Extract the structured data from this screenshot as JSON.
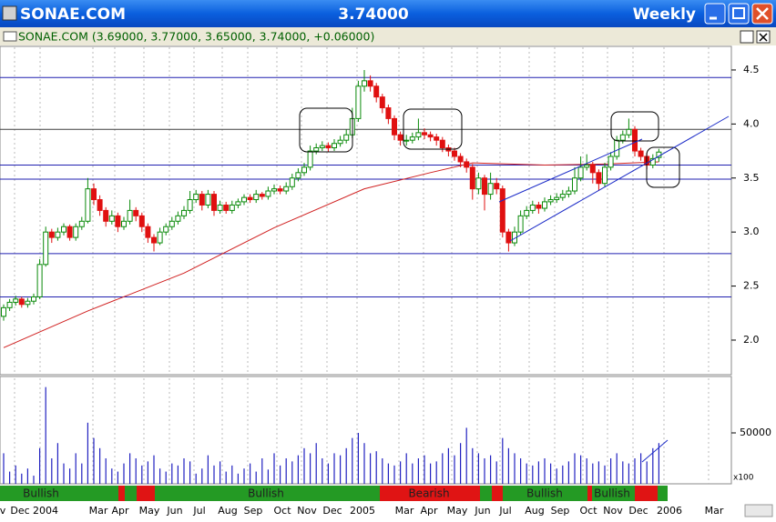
{
  "window": {
    "title": "SONAE.COM",
    "price": "3.74000",
    "period": "Weekly"
  },
  "chart_data": {
    "type": "candlestick",
    "title": "SONAE.COM (3.69000, 3.77000, 3.65000, 3.74000, +0.06000)",
    "up_color": "#0a8a0a",
    "down_color": "#e01010",
    "candles": [
      [
        2.22,
        2.33,
        2.18,
        2.3
      ],
      [
        2.3,
        2.38,
        2.27,
        2.35
      ],
      [
        2.35,
        2.41,
        2.32,
        2.38
      ],
      [
        2.38,
        2.4,
        2.3,
        2.33
      ],
      [
        2.33,
        2.39,
        2.3,
        2.36
      ],
      [
        2.36,
        2.43,
        2.33,
        2.4
      ],
      [
        2.4,
        2.75,
        2.38,
        2.7
      ],
      [
        2.7,
        3.05,
        2.68,
        3.0
      ],
      [
        3.0,
        3.03,
        2.9,
        2.95
      ],
      [
        2.95,
        3.04,
        2.92,
        3.0
      ],
      [
        3.0,
        3.08,
        2.97,
        3.05
      ],
      [
        3.05,
        3.07,
        2.92,
        2.95
      ],
      [
        2.95,
        3.08,
        2.92,
        3.05
      ],
      [
        3.05,
        3.14,
        3.02,
        3.1
      ],
      [
        3.1,
        3.5,
        3.08,
        3.4
      ],
      [
        3.4,
        3.45,
        3.25,
        3.3
      ],
      [
        3.3,
        3.34,
        3.15,
        3.2
      ],
      [
        3.2,
        3.23,
        3.05,
        3.1
      ],
      [
        3.1,
        3.2,
        3.07,
        3.15
      ],
      [
        3.15,
        3.18,
        3.0,
        3.05
      ],
      [
        3.05,
        3.14,
        3.02,
        3.1
      ],
      [
        3.1,
        3.3,
        3.07,
        3.2
      ],
      [
        3.2,
        3.23,
        3.1,
        3.15
      ],
      [
        3.15,
        3.18,
        3.0,
        3.05
      ],
      [
        3.05,
        3.08,
        2.9,
        2.95
      ],
      [
        2.95,
        2.98,
        2.82,
        2.9
      ],
      [
        2.9,
        3.04,
        2.88,
        3.0
      ],
      [
        3.0,
        3.08,
        2.97,
        3.05
      ],
      [
        3.05,
        3.14,
        3.02,
        3.1
      ],
      [
        3.1,
        3.19,
        3.07,
        3.15
      ],
      [
        3.15,
        3.24,
        3.12,
        3.2
      ],
      [
        3.2,
        3.38,
        3.17,
        3.3
      ],
      [
        3.3,
        3.39,
        3.27,
        3.35
      ],
      [
        3.35,
        3.38,
        3.2,
        3.25
      ],
      [
        3.25,
        3.39,
        3.22,
        3.35
      ],
      [
        3.35,
        3.38,
        3.15,
        3.2
      ],
      [
        3.2,
        3.29,
        3.17,
        3.25
      ],
      [
        3.25,
        3.28,
        3.17,
        3.2
      ],
      [
        3.2,
        3.29,
        3.17,
        3.25
      ],
      [
        3.25,
        3.31,
        3.22,
        3.28
      ],
      [
        3.28,
        3.35,
        3.25,
        3.32
      ],
      [
        3.32,
        3.35,
        3.27,
        3.3
      ],
      [
        3.3,
        3.39,
        3.27,
        3.35
      ],
      [
        3.35,
        3.37,
        3.3,
        3.33
      ],
      [
        3.33,
        3.42,
        3.3,
        3.38
      ],
      [
        3.38,
        3.44,
        3.35,
        3.4
      ],
      [
        3.4,
        3.43,
        3.35,
        3.38
      ],
      [
        3.38,
        3.46,
        3.35,
        3.42
      ],
      [
        3.42,
        3.54,
        3.39,
        3.5
      ],
      [
        3.5,
        3.59,
        3.47,
        3.55
      ],
      [
        3.55,
        3.64,
        3.52,
        3.6
      ],
      [
        3.6,
        3.8,
        3.57,
        3.75
      ],
      [
        3.75,
        3.82,
        3.72,
        3.78
      ],
      [
        3.78,
        3.84,
        3.75,
        3.8
      ],
      [
        3.8,
        3.83,
        3.74,
        3.78
      ],
      [
        3.78,
        3.86,
        3.75,
        3.82
      ],
      [
        3.82,
        3.89,
        3.79,
        3.85
      ],
      [
        3.85,
        3.95,
        3.82,
        3.9
      ],
      [
        3.9,
        4.15,
        3.87,
        4.05
      ],
      [
        4.05,
        4.4,
        4.02,
        4.35
      ],
      [
        4.35,
        4.5,
        4.3,
        4.4
      ],
      [
        4.4,
        4.45,
        4.3,
        4.35
      ],
      [
        4.35,
        4.38,
        4.2,
        4.25
      ],
      [
        4.25,
        4.28,
        4.1,
        4.15
      ],
      [
        4.15,
        4.18,
        4.0,
        4.05
      ],
      [
        4.05,
        4.08,
        3.85,
        3.9
      ],
      [
        3.9,
        3.93,
        3.8,
        3.85
      ],
      [
        3.85,
        3.9,
        3.8,
        3.85
      ],
      [
        3.85,
        3.92,
        3.82,
        3.88
      ],
      [
        3.88,
        4.05,
        3.85,
        3.92
      ],
      [
        3.92,
        3.96,
        3.86,
        3.9
      ],
      [
        3.9,
        3.93,
        3.84,
        3.88
      ],
      [
        3.88,
        3.91,
        3.8,
        3.85
      ],
      [
        3.85,
        3.88,
        3.74,
        3.78
      ],
      [
        3.78,
        3.81,
        3.7,
        3.75
      ],
      [
        3.75,
        3.78,
        3.66,
        3.7
      ],
      [
        3.7,
        3.73,
        3.6,
        3.65
      ],
      [
        3.65,
        3.68,
        3.55,
        3.6
      ],
      [
        3.6,
        3.63,
        3.3,
        3.4
      ],
      [
        3.4,
        3.55,
        3.35,
        3.5
      ],
      [
        3.5,
        3.53,
        3.2,
        3.35
      ],
      [
        3.35,
        3.55,
        3.3,
        3.45
      ],
      [
        3.45,
        3.5,
        3.35,
        3.4
      ],
      [
        3.4,
        3.43,
        2.95,
        3.0
      ],
      [
        3.0,
        3.03,
        2.82,
        2.9
      ],
      [
        2.9,
        3.05,
        2.87,
        3.0
      ],
      [
        3.0,
        3.2,
        2.97,
        3.15
      ],
      [
        3.15,
        3.24,
        3.12,
        3.2
      ],
      [
        3.2,
        3.29,
        3.17,
        3.25
      ],
      [
        3.25,
        3.28,
        3.17,
        3.22
      ],
      [
        3.22,
        3.32,
        3.19,
        3.28
      ],
      [
        3.28,
        3.34,
        3.25,
        3.3
      ],
      [
        3.3,
        3.36,
        3.27,
        3.32
      ],
      [
        3.32,
        3.39,
        3.29,
        3.35
      ],
      [
        3.35,
        3.42,
        3.32,
        3.38
      ],
      [
        3.38,
        3.6,
        3.35,
        3.5
      ],
      [
        3.5,
        3.7,
        3.47,
        3.6
      ],
      [
        3.6,
        3.72,
        3.57,
        3.62
      ],
      [
        3.62,
        3.65,
        3.45,
        3.55
      ],
      [
        3.55,
        3.58,
        3.38,
        3.45
      ],
      [
        3.45,
        3.64,
        3.42,
        3.6
      ],
      [
        3.6,
        3.74,
        3.57,
        3.7
      ],
      [
        3.7,
        3.89,
        3.67,
        3.85
      ],
      [
        3.85,
        3.94,
        3.82,
        3.9
      ],
      [
        3.9,
        4.05,
        3.87,
        3.95
      ],
      [
        3.95,
        3.98,
        3.7,
        3.75
      ],
      [
        3.75,
        3.78,
        3.66,
        3.7
      ],
      [
        3.7,
        3.73,
        3.58,
        3.62
      ],
      [
        3.62,
        3.72,
        3.59,
        3.68
      ],
      [
        3.69,
        3.77,
        3.65,
        3.74
      ]
    ],
    "volume": [
      30000,
      12000,
      18000,
      10000,
      15000,
      8000,
      35000,
      95000,
      25000,
      40000,
      20000,
      15000,
      30000,
      20000,
      60000,
      45000,
      35000,
      25000,
      15000,
      12000,
      20000,
      30000,
      25000,
      18000,
      22000,
      28000,
      15000,
      12000,
      20000,
      18000,
      25000,
      22000,
      10000,
      15000,
      28000,
      18000,
      22000,
      12000,
      18000,
      10000,
      15000,
      20000,
      12000,
      25000,
      14000,
      30000,
      18000,
      25000,
      22000,
      28000,
      35000,
      30000,
      40000,
      25000,
      20000,
      30000,
      28000,
      35000,
      45000,
      50000,
      40000,
      30000,
      32000,
      25000,
      20000,
      18000,
      22000,
      30000,
      20000,
      25000,
      28000,
      20000,
      22000,
      30000,
      35000,
      28000,
      40000,
      55000,
      35000,
      30000,
      25000,
      28000,
      22000,
      45000,
      35000,
      30000,
      25000,
      20000,
      18000,
      22000,
      25000,
      20000,
      15000,
      18000,
      22000,
      30000,
      28000,
      25000,
      20000,
      22000,
      18000,
      25000,
      30000,
      22000,
      20000,
      25000,
      30000,
      22000,
      35000,
      40000
    ],
    "volume_color": "#2020c0",
    "ma": {
      "color": "#d02020",
      "x": [
        0,
        14,
        30,
        45,
        60,
        71,
        78,
        90,
        100,
        109
      ],
      "values": [
        1.93,
        2.27,
        2.62,
        3.04,
        3.4,
        3.55,
        3.64,
        3.62,
        3.63,
        3.65
      ]
    },
    "levels": [
      {
        "value": 4.43,
        "color": "#2020b0"
      },
      {
        "value": 3.95,
        "color": "#404040"
      },
      {
        "value": 3.62,
        "color": "#2020b0"
      },
      {
        "value": 3.49,
        "color": "#2020b0"
      },
      {
        "value": 2.8,
        "color": "#2020b0"
      },
      {
        "value": 2.4,
        "color": "#2020b0"
      }
    ],
    "ylim": [
      1.68,
      4.71
    ],
    "yticks": [
      {
        "value": 2,
        "label": "2.0"
      },
      {
        "value": 2.5,
        "label": "2.5"
      },
      {
        "value": 3,
        "label": "3.0"
      },
      {
        "value": 3.5,
        "label": "3.5"
      },
      {
        "value": 4,
        "label": "4.0"
      },
      {
        "value": 4.5,
        "label": "4.5"
      }
    ],
    "vylim": [
      0,
      103600
    ],
    "vyticks": [
      50000
    ],
    "volume_unit": "x100",
    "x_labels": [
      "v",
      "Dec",
      "2004",
      "Mar",
      "Apr",
      "May",
      "Jun",
      "Jul",
      "Aug",
      "Sep",
      "Oct",
      "Nov",
      "Dec",
      "2005",
      "Mar",
      "Apr",
      "May",
      "Jun",
      "Jul",
      "Aug",
      "Sep",
      "Oct",
      "Nov",
      "Dec",
      "2006",
      "Mar"
    ],
    "signals": [
      "Bullish",
      "Bullish",
      "Bearish",
      "Bullish",
      "Bullish"
    ],
    "grid": true
  }
}
